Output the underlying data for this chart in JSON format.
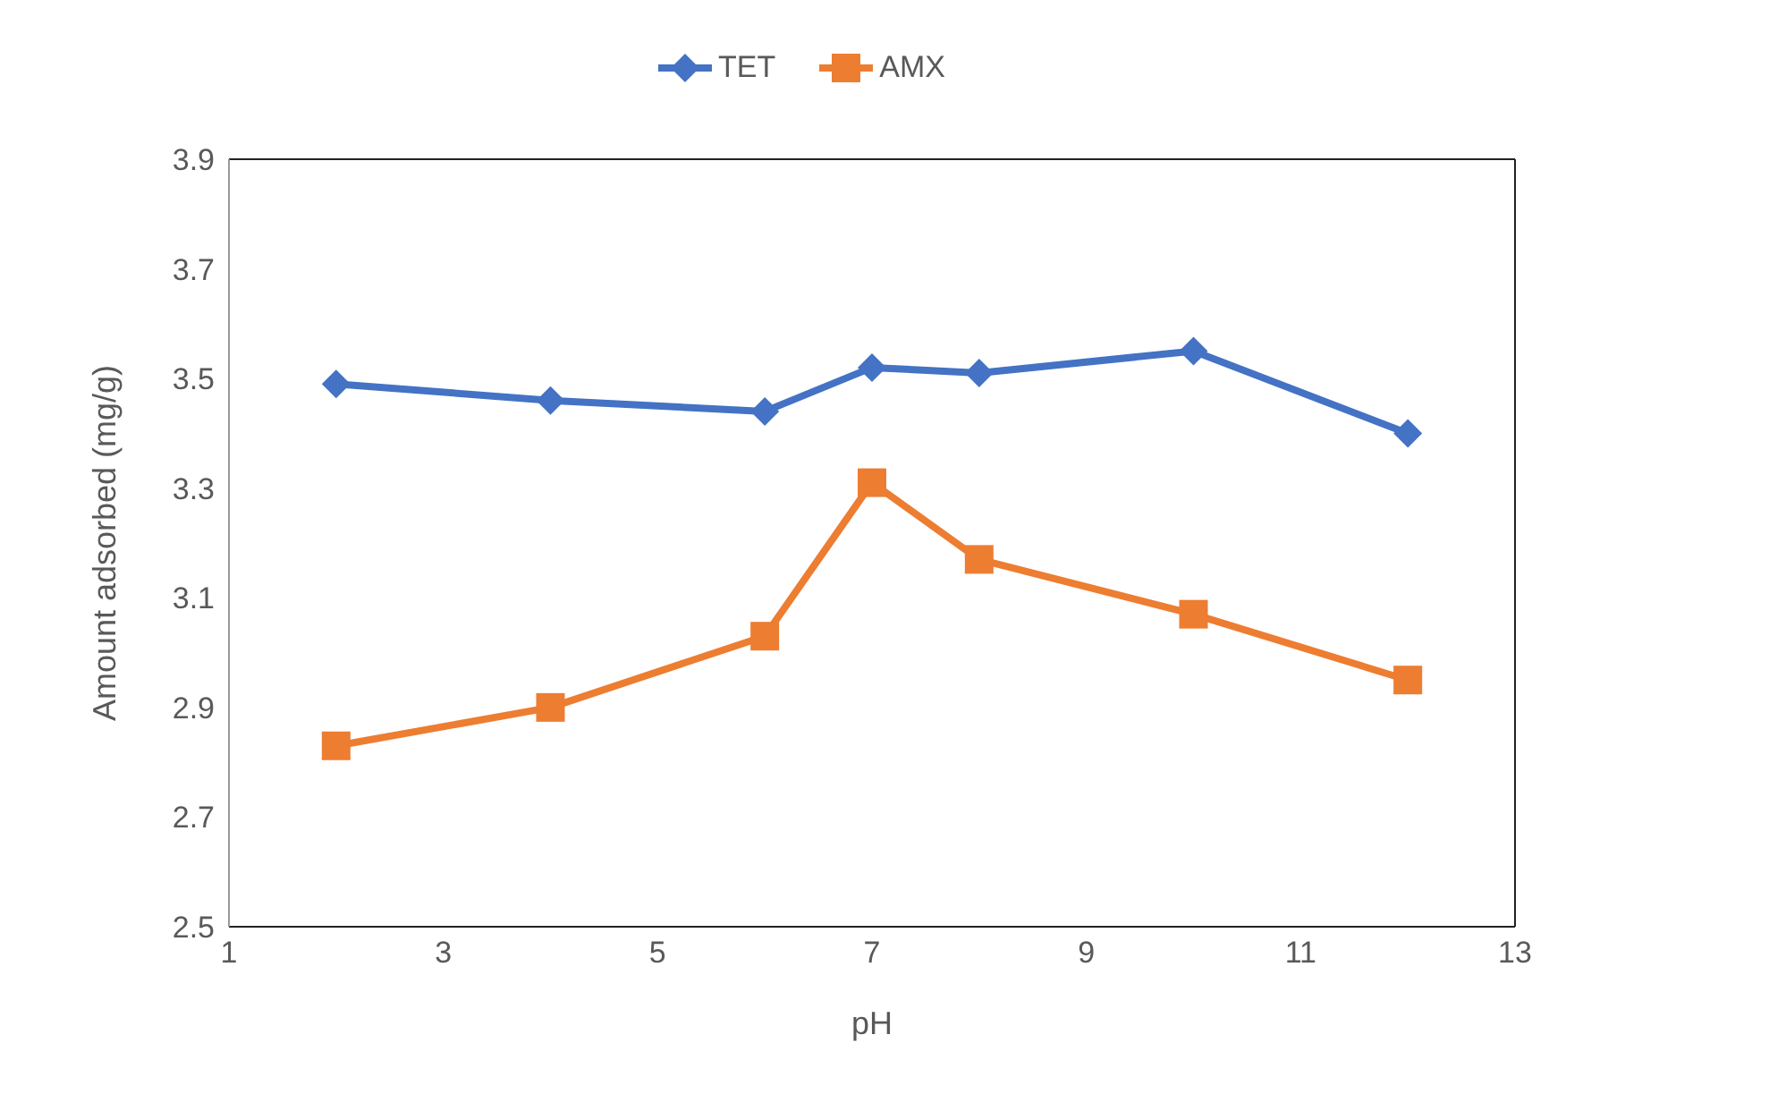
{
  "chart_data": {
    "type": "line",
    "xlabel": "pH",
    "ylabel": "Amount adsorbed (mg/g)",
    "x": [
      2,
      4,
      6,
      7,
      8,
      10,
      12
    ],
    "series": [
      {
        "name": "TET",
        "color": "#4472c4",
        "marker": "diamond",
        "values": [
          3.49,
          3.46,
          3.44,
          3.52,
          3.51,
          3.55,
          3.4
        ]
      },
      {
        "name": "AMX",
        "color": "#ed7d31",
        "marker": "square",
        "values": [
          2.83,
          2.9,
          3.03,
          3.31,
          3.17,
          3.07,
          2.95
        ]
      }
    ],
    "xlim": [
      1,
      13
    ],
    "xticks": [
      1,
      3,
      5,
      7,
      9,
      11,
      13
    ],
    "ylim": [
      2.5,
      3.9
    ],
    "yticks": [
      2.5,
      2.7,
      2.9,
      3.1,
      3.3,
      3.5,
      3.7,
      3.9
    ],
    "grid": false,
    "legend": "top",
    "line_style": "solid"
  }
}
